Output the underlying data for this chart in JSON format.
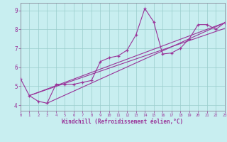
{
  "xlabel": "Windchill (Refroidissement éolien,°C)",
  "xlim": [
    0,
    23
  ],
  "ylim": [
    3.7,
    9.4
  ],
  "xticks": [
    0,
    1,
    2,
    3,
    4,
    5,
    6,
    7,
    8,
    9,
    10,
    11,
    12,
    13,
    14,
    15,
    16,
    17,
    18,
    19,
    20,
    21,
    22,
    23
  ],
  "yticks": [
    4,
    5,
    6,
    7,
    8,
    9
  ],
  "background_color": "#c8eef0",
  "line_color": "#993399",
  "grid_color": "#99cccc",
  "series": [
    [
      0,
      5.4
    ],
    [
      1,
      4.5
    ],
    [
      2,
      4.2
    ],
    [
      3,
      4.1
    ],
    [
      4,
      5.1
    ],
    [
      5,
      5.1
    ],
    [
      6,
      5.1
    ],
    [
      7,
      5.2
    ],
    [
      8,
      5.3
    ],
    [
      9,
      6.3
    ],
    [
      10,
      6.5
    ],
    [
      11,
      6.6
    ],
    [
      12,
      6.9
    ],
    [
      13,
      7.7
    ],
    [
      14,
      9.1
    ],
    [
      15,
      8.4
    ],
    [
      16,
      6.7
    ],
    [
      17,
      6.75
    ],
    [
      18,
      7.0
    ],
    [
      19,
      7.5
    ],
    [
      20,
      8.25
    ],
    [
      21,
      8.25
    ],
    [
      22,
      8.0
    ],
    [
      23,
      8.35
    ]
  ],
  "straight_lines": [
    [
      [
        1,
        4.5
      ],
      [
        23,
        8.35
      ]
    ],
    [
      [
        1,
        4.5
      ],
      [
        23,
        8.05
      ]
    ],
    [
      [
        3,
        4.1
      ],
      [
        23,
        8.35
      ]
    ]
  ]
}
